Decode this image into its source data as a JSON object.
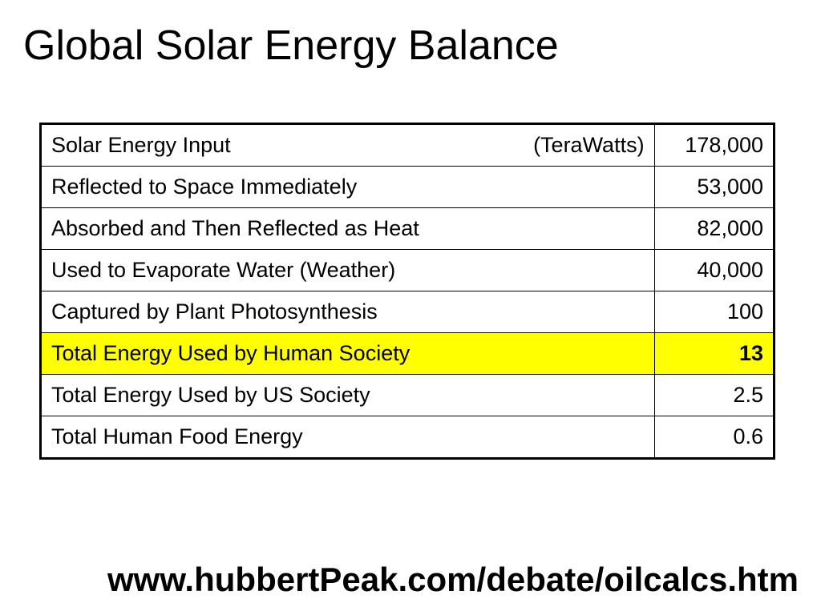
{
  "title": "Global Solar Energy Balance",
  "table": {
    "unit": "(TeraWatts)",
    "rows": [
      {
        "label": "Solar Energy Input",
        "value": "178,000"
      },
      {
        "label": "Reflected to Space Immediately",
        "value": "53,000"
      },
      {
        "label": "Absorbed and Then Reflected as Heat",
        "value": "82,000"
      },
      {
        "label": "Used to Evaporate Water (Weather)",
        "value": "40,000"
      },
      {
        "label": "Captured by Plant Photosynthesis",
        "value": "100"
      },
      {
        "label": "Total Energy Used by Human Society",
        "value": "13"
      },
      {
        "label": "Total Energy Used by US Society",
        "value": "2.5"
      },
      {
        "label": "Total Human Food Energy",
        "value": "0.6"
      }
    ]
  },
  "source_url": "www.hubbertPeak.com/debate/oilcalcs.htm",
  "colors": {
    "highlight": "#ffff00",
    "text": "#000000",
    "background": "#ffffff"
  }
}
